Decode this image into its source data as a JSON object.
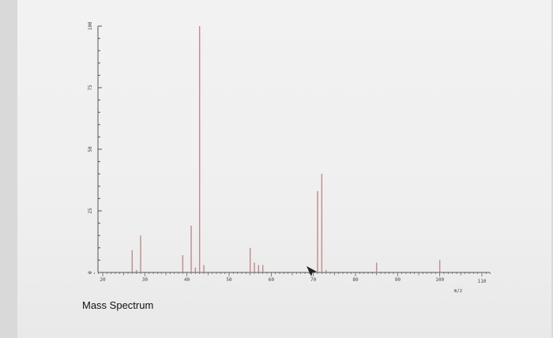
{
  "caption": "Mass Spectrum",
  "chart_data": {
    "type": "bar",
    "title": "",
    "xlabel": "m/z",
    "ylabel": "",
    "xlim": [
      17,
      112
    ],
    "ylim": [
      0,
      100
    ],
    "x_ticks": [
      20,
      30,
      40,
      50,
      60,
      70,
      80,
      90,
      100,
      110
    ],
    "y_ticks": [
      0,
      25,
      50,
      75,
      100
    ],
    "grid": false,
    "bar_color": "#c08a8a",
    "axis_color": "#555555",
    "peaks": [
      {
        "mz": 27,
        "intensity": 9
      },
      {
        "mz": 28,
        "intensity": 1
      },
      {
        "mz": 29,
        "intensity": 15
      },
      {
        "mz": 39,
        "intensity": 7
      },
      {
        "mz": 41,
        "intensity": 19
      },
      {
        "mz": 42,
        "intensity": 2
      },
      {
        "mz": 43,
        "intensity": 100
      },
      {
        "mz": 44,
        "intensity": 3
      },
      {
        "mz": 55,
        "intensity": 10
      },
      {
        "mz": 56,
        "intensity": 4
      },
      {
        "mz": 57,
        "intensity": 3
      },
      {
        "mz": 58,
        "intensity": 3
      },
      {
        "mz": 71,
        "intensity": 33
      },
      {
        "mz": 72,
        "intensity": 40
      },
      {
        "mz": 73,
        "intensity": 1
      },
      {
        "mz": 85,
        "intensity": 4
      },
      {
        "mz": 100,
        "intensity": 5
      }
    ]
  }
}
